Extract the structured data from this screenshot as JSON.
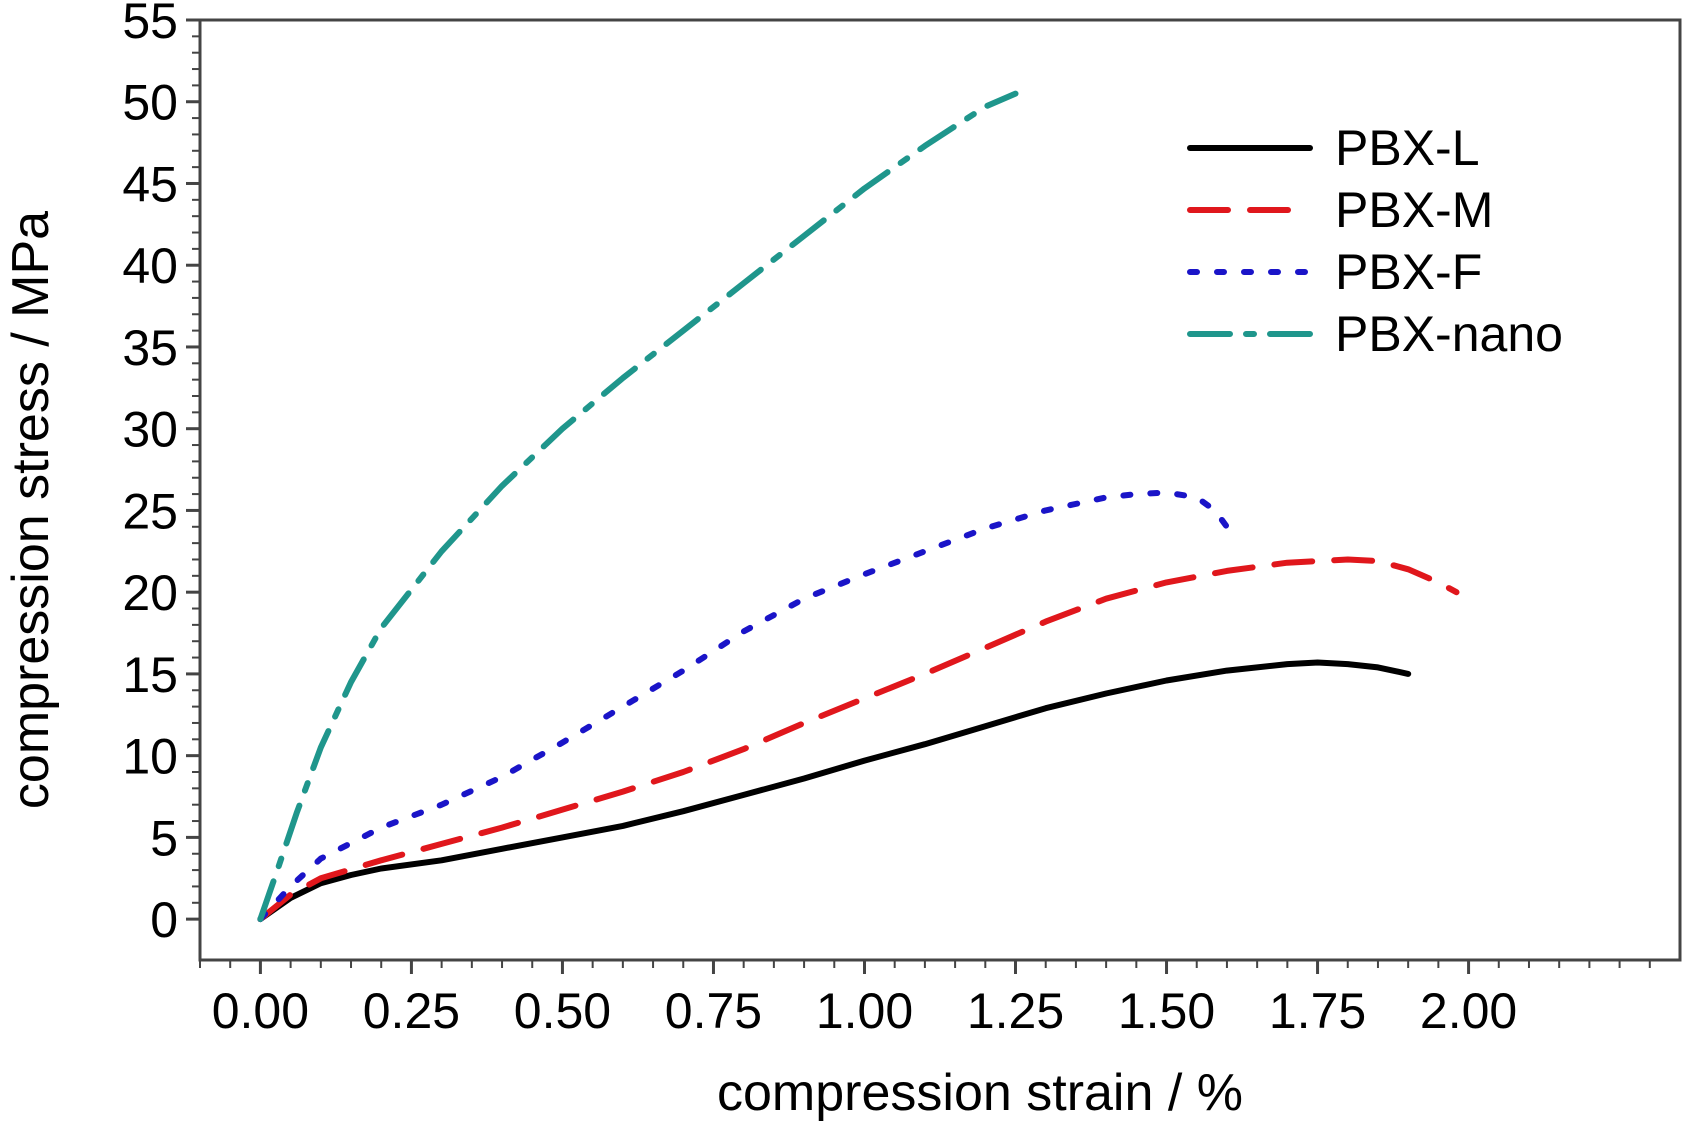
{
  "chart_data": {
    "type": "line",
    "title": "",
    "xlabel": "compression strain / %",
    "ylabel": "compression stress / MPa",
    "xlim": [
      -0.1,
      2.35
    ],
    "ylim": [
      -2.5,
      55
    ],
    "x_ticks": [
      0.0,
      0.25,
      0.5,
      0.75,
      1.0,
      1.25,
      1.5,
      1.75,
      2.0
    ],
    "x_tick_labels": [
      "0.00",
      "0.25",
      "0.50",
      "0.75",
      "1.00",
      "1.25",
      "1.50",
      "1.75",
      "2.00"
    ],
    "y_ticks": [
      0,
      5,
      10,
      15,
      20,
      25,
      30,
      35,
      40,
      45,
      50,
      55
    ],
    "y_tick_labels": [
      "0",
      "5",
      "10",
      "15",
      "20",
      "25",
      "30",
      "35",
      "40",
      "45",
      "50",
      "55"
    ],
    "grid": false,
    "legend_position": "top-right",
    "series": [
      {
        "name": "PBX-L",
        "color": "#000000",
        "dash": "solid",
        "points": [
          [
            0.0,
            0.0
          ],
          [
            0.05,
            1.3
          ],
          [
            0.1,
            2.2
          ],
          [
            0.15,
            2.7
          ],
          [
            0.2,
            3.1
          ],
          [
            0.3,
            3.6
          ],
          [
            0.4,
            4.3
          ],
          [
            0.5,
            5.0
          ],
          [
            0.6,
            5.7
          ],
          [
            0.7,
            6.6
          ],
          [
            0.8,
            7.6
          ],
          [
            0.9,
            8.6
          ],
          [
            1.0,
            9.7
          ],
          [
            1.1,
            10.7
          ],
          [
            1.2,
            11.8
          ],
          [
            1.3,
            12.9
          ],
          [
            1.4,
            13.8
          ],
          [
            1.5,
            14.6
          ],
          [
            1.6,
            15.2
          ],
          [
            1.7,
            15.6
          ],
          [
            1.75,
            15.7
          ],
          [
            1.8,
            15.6
          ],
          [
            1.85,
            15.4
          ],
          [
            1.9,
            15.0
          ]
        ]
      },
      {
        "name": "PBX-M",
        "color": "#e0171c",
        "dash": "dashed",
        "points": [
          [
            0.0,
            0.0
          ],
          [
            0.05,
            1.5
          ],
          [
            0.1,
            2.5
          ],
          [
            0.2,
            3.6
          ],
          [
            0.3,
            4.6
          ],
          [
            0.4,
            5.6
          ],
          [
            0.5,
            6.7
          ],
          [
            0.6,
            7.8
          ],
          [
            0.7,
            9.0
          ],
          [
            0.8,
            10.4
          ],
          [
            0.9,
            12.0
          ],
          [
            1.0,
            13.5
          ],
          [
            1.1,
            15.0
          ],
          [
            1.2,
            16.6
          ],
          [
            1.3,
            18.2
          ],
          [
            1.4,
            19.6
          ],
          [
            1.5,
            20.6
          ],
          [
            1.6,
            21.3
          ],
          [
            1.7,
            21.8
          ],
          [
            1.8,
            22.0
          ],
          [
            1.85,
            21.9
          ],
          [
            1.9,
            21.4
          ],
          [
            1.95,
            20.6
          ],
          [
            1.98,
            20.0
          ]
        ]
      },
      {
        "name": "PBX-F",
        "color": "#1a14c8",
        "dash": "dotted",
        "points": [
          [
            0.0,
            0.0
          ],
          [
            0.05,
            2.0
          ],
          [
            0.1,
            3.7
          ],
          [
            0.2,
            5.6
          ],
          [
            0.3,
            7.0
          ],
          [
            0.4,
            8.7
          ],
          [
            0.5,
            10.8
          ],
          [
            0.6,
            13.0
          ],
          [
            0.7,
            15.2
          ],
          [
            0.8,
            17.6
          ],
          [
            0.9,
            19.6
          ],
          [
            1.0,
            21.1
          ],
          [
            1.1,
            22.5
          ],
          [
            1.2,
            23.9
          ],
          [
            1.3,
            25.0
          ],
          [
            1.4,
            25.8
          ],
          [
            1.45,
            26.0
          ],
          [
            1.5,
            26.1
          ],
          [
            1.55,
            25.8
          ],
          [
            1.58,
            25.0
          ],
          [
            1.6,
            24.0
          ]
        ]
      },
      {
        "name": "PBX-nano",
        "color": "#1f968c",
        "dash": "dashdot",
        "points": [
          [
            0.0,
            0.0
          ],
          [
            0.03,
            3.2
          ],
          [
            0.06,
            6.5
          ],
          [
            0.1,
            10.5
          ],
          [
            0.15,
            14.5
          ],
          [
            0.2,
            17.8
          ],
          [
            0.3,
            22.5
          ],
          [
            0.4,
            26.5
          ],
          [
            0.5,
            30.0
          ],
          [
            0.6,
            33.1
          ],
          [
            0.7,
            36.0
          ],
          [
            0.8,
            38.9
          ],
          [
            0.9,
            41.8
          ],
          [
            1.0,
            44.7
          ],
          [
            1.1,
            47.3
          ],
          [
            1.2,
            49.7
          ],
          [
            1.25,
            50.5
          ]
        ]
      }
    ]
  }
}
